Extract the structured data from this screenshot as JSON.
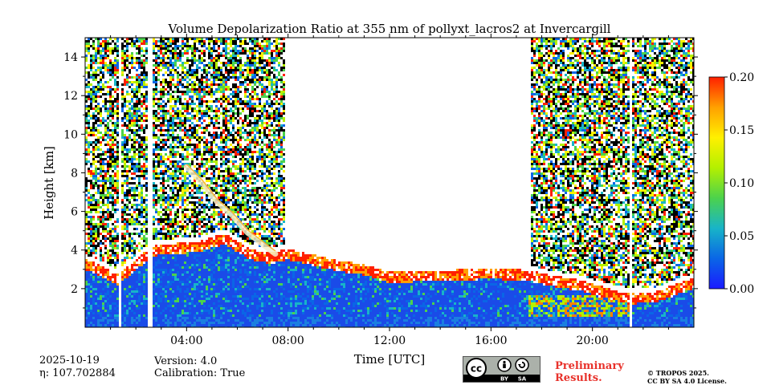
{
  "chart_data": {
    "type": "heatmap",
    "title": "Volume Depolarization Ratio at 355 nm of pollyxt_lacros2 at Invercargill",
    "xlabel": "Time [UTC]",
    "ylabel": "Height [km]",
    "xlim": [
      0,
      24
    ],
    "ylim": [
      0,
      15
    ],
    "x_ticks": [
      {
        "value": 4,
        "label": "04:00"
      },
      {
        "value": 8,
        "label": "08:00"
      },
      {
        "value": 12,
        "label": "12:00"
      },
      {
        "value": 16,
        "label": "16:00"
      },
      {
        "value": 20,
        "label": "20:00"
      }
    ],
    "y_ticks": [
      {
        "value": 2,
        "label": "2"
      },
      {
        "value": 4,
        "label": "4"
      },
      {
        "value": 6,
        "label": "6"
      },
      {
        "value": 8,
        "label": "8"
      },
      {
        "value": 10,
        "label": "10"
      },
      {
        "value": 12,
        "label": "12"
      },
      {
        "value": 14,
        "label": "14"
      }
    ],
    "colorbar": {
      "range": [
        0.0,
        0.2
      ],
      "ticks": [
        {
          "value": 0.0,
          "label": "0.00"
        },
        {
          "value": 0.05,
          "label": "0.05"
        },
        {
          "value": 0.1,
          "label": "0.10"
        },
        {
          "value": 0.15,
          "label": "0.15"
        },
        {
          "value": 0.2,
          "label": "0.20"
        }
      ],
      "colormap": [
        "#1a1aff",
        "#0a66e6",
        "#18b4c8",
        "#4cd24c",
        "#b4f000",
        "#fff000",
        "#ffa000",
        "#ff2000"
      ]
    },
    "noise_regions": [
      [
        0,
        1.3
      ],
      [
        1.4,
        2.5
      ],
      [
        2.7,
        7.9
      ],
      [
        17.6,
        21.5
      ],
      [
        21.6,
        24
      ]
    ],
    "gaps": [
      [
        1.3,
        1.4
      ],
      [
        2.5,
        2.7
      ],
      [
        21.5,
        21.6
      ]
    ],
    "cloud_top_km": [
      [
        0,
        3.3
      ],
      [
        1.3,
        2.5
      ],
      [
        2.7,
        4.0
      ],
      [
        4.5,
        4.2
      ],
      [
        5.5,
        4.6
      ],
      [
        6.5,
        3.8
      ],
      [
        7.3,
        3.6
      ],
      [
        8,
        3.8
      ],
      [
        9,
        3.5
      ],
      [
        10,
        3.2
      ],
      [
        11,
        3.0
      ],
      [
        12,
        2.6
      ],
      [
        14,
        2.7
      ],
      [
        16,
        2.8
      ],
      [
        17.5,
        2.7
      ],
      [
        18.5,
        2.4
      ],
      [
        19.5,
        2.2
      ],
      [
        20.5,
        1.8
      ],
      [
        21.5,
        1.5
      ],
      [
        22.5,
        1.6
      ],
      [
        24,
        2.3
      ]
    ],
    "plume": [
      [
        4.0,
        8.3
      ],
      [
        4.6,
        7.5
      ],
      [
        5.2,
        6.5
      ],
      [
        5.8,
        5.8
      ],
      [
        6.4,
        4.9
      ],
      [
        7.0,
        4.3
      ],
      [
        7.5,
        3.8
      ]
    ]
  },
  "footer": {
    "date": "2025-10-19",
    "eta_label": "η: 107.702884",
    "version": "Version: 4.0",
    "calibration": "Calibration: True",
    "prelim_line1": "Preliminary",
    "prelim_line2": "Results.",
    "copyright_line1": "© TROPOS 2025.",
    "copyright_line2": "CC BY SA 4.0 License.",
    "cc_badge": {
      "by": "BY",
      "sa": "SA"
    }
  }
}
